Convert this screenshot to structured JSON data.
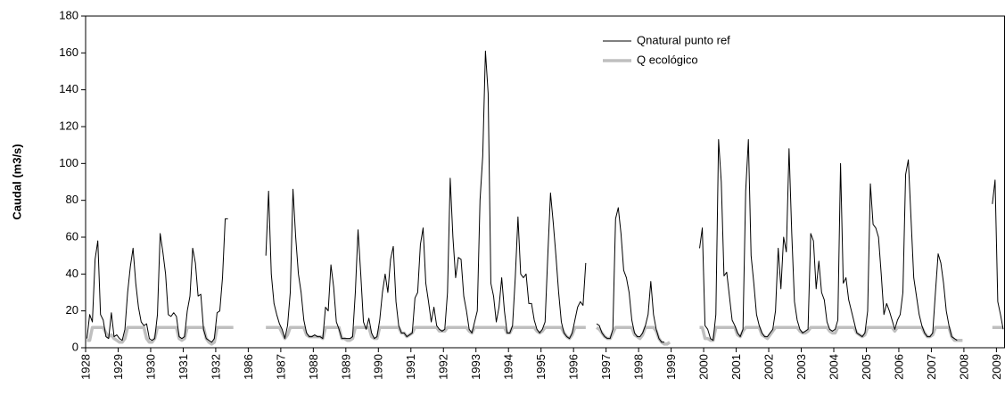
{
  "chart_data": {
    "type": "line",
    "y_label": "Caudal (m3/s)",
    "ylim": [
      0,
      180
    ],
    "yticks": [
      0,
      20,
      40,
      60,
      80,
      100,
      120,
      140,
      160,
      180
    ],
    "legend": "top-center",
    "categories": [
      "1928",
      null,
      null,
      null,
      null,
      null,
      null,
      null,
      null,
      null,
      null,
      null,
      "1929",
      null,
      null,
      null,
      null,
      null,
      null,
      null,
      null,
      null,
      null,
      null,
      "1930",
      null,
      null,
      null,
      null,
      null,
      null,
      null,
      null,
      null,
      null,
      null,
      "1931",
      null,
      null,
      null,
      null,
      null,
      null,
      null,
      null,
      null,
      null,
      null,
      "1932",
      null,
      null,
      null,
      null,
      null,
      null,
      null,
      null,
      null,
      null,
      null,
      "1986",
      null,
      null,
      null,
      null,
      null,
      null,
      null,
      null,
      null,
      null,
      null,
      "1987",
      null,
      null,
      null,
      null,
      null,
      null,
      null,
      null,
      null,
      null,
      null,
      "1988",
      null,
      null,
      null,
      null,
      null,
      null,
      null,
      null,
      null,
      null,
      null,
      "1989",
      null,
      null,
      null,
      null,
      null,
      null,
      null,
      null,
      null,
      null,
      null,
      "1990",
      null,
      null,
      null,
      null,
      null,
      null,
      null,
      null,
      null,
      null,
      null,
      "1991",
      null,
      null,
      null,
      null,
      null,
      null,
      null,
      null,
      null,
      null,
      null,
      "1992",
      null,
      null,
      null,
      null,
      null,
      null,
      null,
      null,
      null,
      null,
      null,
      "1993",
      null,
      null,
      null,
      null,
      null,
      null,
      null,
      null,
      null,
      null,
      null,
      "1994",
      null,
      null,
      null,
      null,
      null,
      null,
      null,
      null,
      null,
      null,
      null,
      "1995",
      null,
      null,
      null,
      null,
      null,
      null,
      null,
      null,
      null,
      null,
      null,
      "1996",
      null,
      null,
      null,
      null,
      null,
      null,
      null,
      null,
      null,
      null,
      null,
      "1997",
      null,
      null,
      null,
      null,
      null,
      null,
      null,
      null,
      null,
      null,
      null,
      "1998",
      null,
      null,
      null,
      null,
      null,
      null,
      null,
      null,
      null,
      null,
      null,
      "1999",
      null,
      null,
      null,
      null,
      null,
      null,
      null,
      null,
      null,
      null,
      null,
      "2000",
      null,
      null,
      null,
      null,
      null,
      null,
      null,
      null,
      null,
      null,
      null,
      "2001",
      null,
      null,
      null,
      null,
      null,
      null,
      null,
      null,
      null,
      null,
      null,
      "2002",
      null,
      null,
      null,
      null,
      null,
      null,
      null,
      null,
      null,
      null,
      null,
      "2003",
      null,
      null,
      null,
      null,
      null,
      null,
      null,
      null,
      null,
      null,
      null,
      "2004",
      null,
      null,
      null,
      null,
      null,
      null,
      null,
      null,
      null,
      null,
      null,
      "2005",
      null,
      null,
      null,
      null,
      null,
      null,
      null,
      null,
      null,
      null,
      null,
      "2006",
      null,
      null,
      null,
      null,
      null,
      null,
      null,
      null,
      null,
      null,
      null,
      "2007",
      null,
      null,
      null,
      null,
      null,
      null,
      null,
      null,
      null,
      null,
      null,
      "2008",
      null,
      null,
      null,
      null,
      null,
      null,
      null,
      null,
      null,
      null,
      null,
      "2009",
      null,
      null
    ],
    "series": [
      {
        "name": "Qnatural punto ref",
        "color": "#000000",
        "width": 1,
        "values": [
          5,
          18,
          14,
          48,
          58,
          18,
          15,
          6,
          5,
          19,
          6,
          7,
          5,
          4,
          10,
          30,
          44,
          54,
          35,
          22,
          14,
          12,
          13,
          5,
          4,
          5,
          18,
          62,
          52,
          40,
          18,
          17,
          19,
          17,
          6,
          5,
          6,
          20,
          28,
          54,
          46,
          28,
          29,
          10,
          5,
          4,
          3,
          5,
          19,
          20,
          38,
          70,
          70,
          null,
          null,
          null,
          null,
          null,
          null,
          null,
          null,
          null,
          null,
          null,
          null,
          null,
          50,
          85,
          40,
          24,
          18,
          13,
          10,
          5,
          12,
          30,
          86,
          60,
          40,
          30,
          15,
          8,
          6,
          6,
          7,
          6,
          6,
          5,
          22,
          20,
          45,
          33,
          14,
          10,
          5,
          5,
          5,
          5,
          6,
          30,
          64,
          40,
          14,
          10,
          16,
          8,
          5,
          6,
          15,
          30,
          40,
          30,
          48,
          55,
          25,
          12,
          8,
          8,
          6,
          7,
          8,
          27,
          30,
          56,
          65,
          35,
          25,
          14,
          22,
          12,
          10,
          9,
          10,
          30,
          92,
          60,
          38,
          49,
          48,
          28,
          20,
          10,
          8,
          14,
          20,
          80,
          104,
          161,
          138,
          35,
          28,
          14,
          22,
          38,
          20,
          8,
          8,
          12,
          38,
          71,
          40,
          38,
          40,
          24,
          24,
          15,
          10,
          8,
          10,
          14,
          50,
          84,
          68,
          50,
          30,
          14,
          8,
          6,
          5,
          8,
          15,
          22,
          25,
          23,
          46,
          null,
          null,
          null,
          13,
          12,
          8,
          6,
          5,
          5,
          10,
          70,
          76,
          62,
          42,
          38,
          30,
          15,
          8,
          6,
          6,
          8,
          12,
          18,
          36,
          18,
          10,
          5,
          3,
          3,
          null,
          null,
          null,
          null,
          null,
          null,
          null,
          null,
          null,
          null,
          null,
          null,
          54,
          65,
          12,
          10,
          5,
          4,
          18,
          113,
          90,
          39,
          41,
          28,
          15,
          12,
          8,
          6,
          10,
          85,
          113,
          50,
          35,
          18,
          12,
          8,
          6,
          6,
          8,
          10,
          20,
          54,
          32,
          60,
          52,
          108,
          62,
          25,
          15,
          10,
          8,
          9,
          10,
          62,
          58,
          32,
          47,
          30,
          26,
          14,
          10,
          9,
          10,
          15,
          100,
          35,
          38,
          26,
          20,
          14,
          8,
          7,
          6,
          8,
          20,
          89,
          67,
          65,
          60,
          40,
          18,
          24,
          20,
          15,
          10,
          15,
          18,
          30,
          94,
          102,
          70,
          38,
          28,
          18,
          12,
          8,
          6,
          6,
          8,
          30,
          51,
          46,
          35,
          20,
          12,
          6,
          5,
          4,
          null,
          null,
          null,
          null,
          null,
          null,
          null,
          null,
          null,
          null,
          null,
          null,
          78,
          91,
          25,
          18,
          10
        ]
      },
      {
        "name": "Q ecológico",
        "color": "#bfbfbf",
        "width": 3.5,
        "values": [
          4,
          4,
          11,
          11,
          11,
          11,
          11,
          8,
          6,
          7,
          5,
          4,
          3,
          3,
          5,
          11,
          11,
          11,
          11,
          11,
          11,
          11,
          5,
          3,
          3,
          5,
          11,
          11,
          11,
          11,
          11,
          11,
          11,
          11,
          5,
          4,
          5,
          11,
          11,
          11,
          11,
          11,
          11,
          11,
          5,
          3,
          2,
          3,
          11,
          11,
          11,
          11,
          11,
          11,
          11,
          null,
          null,
          null,
          null,
          null,
          null,
          null,
          null,
          null,
          null,
          null,
          11,
          11,
          11,
          11,
          11,
          11,
          8,
          5,
          7,
          11,
          11,
          11,
          11,
          11,
          11,
          7,
          6,
          6,
          6,
          6,
          6,
          5,
          11,
          11,
          11,
          11,
          11,
          11,
          5,
          5,
          4,
          4,
          5,
          11,
          11,
          11,
          11,
          11,
          11,
          6,
          5,
          5,
          11,
          11,
          11,
          11,
          11,
          11,
          11,
          11,
          8,
          8,
          6,
          7,
          8,
          11,
          11,
          11,
          11,
          11,
          11,
          11,
          11,
          11,
          9,
          9,
          9,
          11,
          11,
          11,
          11,
          11,
          11,
          11,
          11,
          9,
          8,
          11,
          11,
          11,
          11,
          11,
          11,
          11,
          11,
          11,
          11,
          11,
          11,
          8,
          8,
          11,
          11,
          11,
          11,
          11,
          11,
          11,
          11,
          11,
          9,
          8,
          9,
          11,
          11,
          11,
          11,
          11,
          11,
          11,
          8,
          6,
          5,
          7,
          11,
          11,
          11,
          11,
          11,
          null,
          null,
          null,
          11,
          10,
          8,
          6,
          5,
          5,
          8,
          11,
          11,
          11,
          11,
          11,
          11,
          11,
          7,
          6,
          5,
          7,
          11,
          11,
          11,
          11,
          9,
          5,
          3,
          2,
          2,
          3,
          null,
          null,
          null,
          null,
          null,
          null,
          null,
          null,
          null,
          null,
          11,
          11,
          5,
          5,
          4,
          4,
          11,
          11,
          11,
          11,
          11,
          11,
          11,
          11,
          7,
          6,
          9,
          11,
          11,
          11,
          11,
          11,
          11,
          7,
          6,
          5,
          7,
          9,
          11,
          11,
          11,
          11,
          11,
          11,
          11,
          11,
          11,
          9,
          8,
          8,
          9,
          11,
          11,
          11,
          11,
          11,
          11,
          11,
          9,
          8,
          8,
          11,
          11,
          11,
          11,
          11,
          11,
          11,
          8,
          7,
          6,
          7,
          11,
          11,
          11,
          11,
          11,
          11,
          11,
          11,
          11,
          11,
          9,
          11,
          11,
          11,
          11,
          11,
          11,
          11,
          11,
          11,
          11,
          8,
          6,
          6,
          7,
          11,
          11,
          11,
          11,
          11,
          11,
          6,
          4,
          4,
          4,
          4,
          null,
          null,
          null,
          null,
          null,
          null,
          null,
          null,
          null,
          null,
          11,
          11,
          11,
          11,
          11
        ]
      }
    ]
  }
}
